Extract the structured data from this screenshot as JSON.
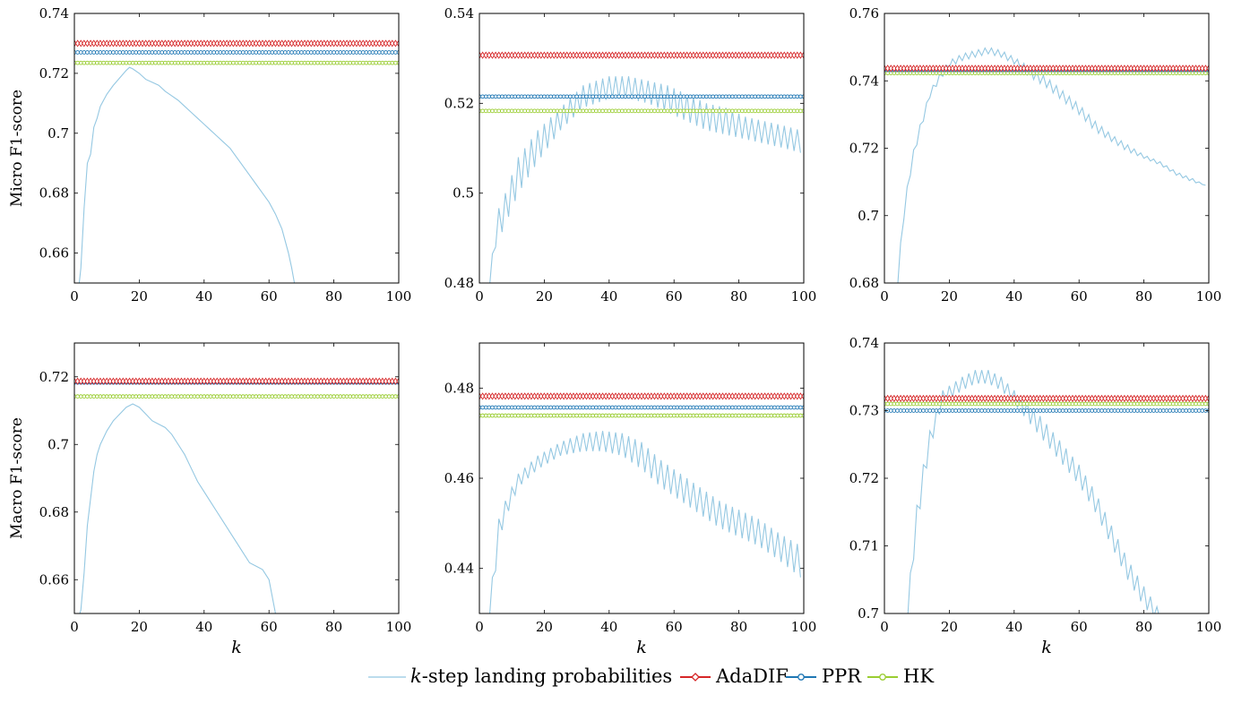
{
  "chart_data": [
    {
      "type": "line",
      "row": 0,
      "col": 0,
      "ylabel": "Micro F1-score",
      "xlabel": "",
      "xlim": [
        0,
        100
      ],
      "ylim": [
        0.65,
        0.74
      ],
      "xticks": [
        "0",
        "20",
        "40",
        "60",
        "80",
        "100"
      ],
      "yticks": [
        "0.66",
        "0.68",
        "0.7",
        "0.72",
        "0.74"
      ],
      "ytickvals": [
        0.66,
        0.68,
        0.7,
        0.72,
        0.74
      ],
      "baselines": {
        "AdaDIF": 0.73,
        "PPR": 0.727,
        "HK": 0.7235
      },
      "kstep_points": [
        [
          1,
          0.645
        ],
        [
          2,
          0.655
        ],
        [
          3,
          0.675
        ],
        [
          4,
          0.69
        ],
        [
          5,
          0.693
        ],
        [
          6,
          0.702
        ],
        [
          7,
          0.705
        ],
        [
          8,
          0.709
        ],
        [
          10,
          0.713
        ],
        [
          12,
          0.716
        ],
        [
          14,
          0.7185
        ],
        [
          16,
          0.721
        ],
        [
          17,
          0.722
        ],
        [
          18,
          0.7215
        ],
        [
          20,
          0.72
        ],
        [
          22,
          0.718
        ],
        [
          24,
          0.717
        ],
        [
          26,
          0.716
        ],
        [
          28,
          0.714
        ],
        [
          30,
          0.7125
        ],
        [
          32,
          0.711
        ],
        [
          34,
          0.709
        ],
        [
          36,
          0.707
        ],
        [
          38,
          0.705
        ],
        [
          40,
          0.703
        ],
        [
          42,
          0.701
        ],
        [
          44,
          0.699
        ],
        [
          46,
          0.697
        ],
        [
          48,
          0.695
        ],
        [
          50,
          0.692
        ],
        [
          52,
          0.689
        ],
        [
          54,
          0.686
        ],
        [
          56,
          0.683
        ],
        [
          58,
          0.68
        ],
        [
          60,
          0.677
        ],
        [
          62,
          0.673
        ],
        [
          64,
          0.668
        ],
        [
          66,
          0.66
        ],
        [
          67,
          0.655
        ],
        [
          68,
          0.649
        ]
      ]
    },
    {
      "type": "line",
      "row": 0,
      "col": 1,
      "ylabel": "",
      "xlabel": "",
      "xlim": [
        0,
        100
      ],
      "ylim": [
        0.48,
        0.54
      ],
      "xticks": [
        "0",
        "20",
        "40",
        "60",
        "80",
        "100"
      ],
      "yticks": [
        "0.48",
        "0.5",
        "0.52",
        "0.54"
      ],
      "ytickvals": [
        0.48,
        0.5,
        0.52,
        0.54
      ],
      "baselines": {
        "AdaDIF": 0.5307,
        "PPR": 0.5215,
        "HK": 0.5183
      },
      "kstep_envelope": {
        "k": [
          3,
          5,
          8,
          12,
          18,
          25,
          32,
          40,
          46,
          52,
          58,
          64,
          70,
          76,
          82,
          88,
          94,
          99
        ],
        "high": [
          0.478,
          0.495,
          0.5,
          0.508,
          0.514,
          0.519,
          0.524,
          0.526,
          0.526,
          0.525,
          0.524,
          0.522,
          0.52,
          0.519,
          0.517,
          0.516,
          0.515,
          0.514
        ],
        "low": [
          0.478,
          0.488,
          0.493,
          0.5,
          0.507,
          0.514,
          0.519,
          0.521,
          0.521,
          0.52,
          0.518,
          0.516,
          0.514,
          0.513,
          0.512,
          0.511,
          0.51,
          0.509
        ]
      }
    },
    {
      "type": "line",
      "row": 0,
      "col": 2,
      "ylabel": "",
      "xlabel": "",
      "xlim": [
        0,
        100
      ],
      "ylim": [
        0.68,
        0.76
      ],
      "xticks": [
        "0",
        "20",
        "40",
        "60",
        "80",
        "100"
      ],
      "yticks": [
        "0.68",
        "0.7",
        "0.72",
        "0.74",
        "0.76"
      ],
      "ytickvals": [
        0.68,
        0.7,
        0.72,
        0.74,
        0.76
      ],
      "baselines": {
        "AdaDIF": 0.7437,
        "PPR": 0.7432,
        "HK": 0.7423
      },
      "kstep_envelope": {
        "k": [
          4,
          5,
          6,
          8,
          10,
          12,
          14,
          17,
          20,
          24,
          28,
          32,
          36,
          40,
          45,
          50,
          55,
          60,
          65,
          70,
          75,
          80,
          85,
          90,
          95,
          99
        ],
        "high": [
          0.678,
          0.692,
          0.702,
          0.715,
          0.724,
          0.73,
          0.737,
          0.742,
          0.746,
          0.748,
          0.749,
          0.75,
          0.749,
          0.747,
          0.744,
          0.741,
          0.737,
          0.733,
          0.728,
          0.724,
          0.721,
          0.718,
          0.716,
          0.713,
          0.711,
          0.709
        ],
        "low": [
          0.678,
          0.69,
          0.699,
          0.712,
          0.721,
          0.728,
          0.735,
          0.74,
          0.744,
          0.746,
          0.747,
          0.748,
          0.747,
          0.745,
          0.741,
          0.738,
          0.734,
          0.73,
          0.725,
          0.722,
          0.719,
          0.717,
          0.715,
          0.712,
          0.71,
          0.709
        ]
      }
    },
    {
      "type": "line",
      "row": 1,
      "col": 0,
      "ylabel": "Macro F1-score",
      "xlabel": "k",
      "xlim": [
        0,
        100
      ],
      "ylim": [
        0.65,
        0.73
      ],
      "xticks": [
        "0",
        "20",
        "40",
        "60",
        "80",
        "100"
      ],
      "yticks": [
        "0.66",
        "0.68",
        "0.7",
        "0.72"
      ],
      "ytickvals": [
        0.66,
        0.68,
        0.7,
        0.72
      ],
      "baselines": {
        "AdaDIF": 0.7187,
        "PPR": 0.7183,
        "HK": 0.7142
      },
      "kstep_points": [
        [
          1,
          0.648
        ],
        [
          2,
          0.651
        ],
        [
          3,
          0.662
        ],
        [
          4,
          0.676
        ],
        [
          5,
          0.684
        ],
        [
          6,
          0.692
        ],
        [
          7,
          0.697
        ],
        [
          8,
          0.7
        ],
        [
          10,
          0.704
        ],
        [
          12,
          0.707
        ],
        [
          14,
          0.709
        ],
        [
          16,
          0.711
        ],
        [
          18,
          0.712
        ],
        [
          19,
          0.7115
        ],
        [
          20,
          0.711
        ],
        [
          22,
          0.709
        ],
        [
          24,
          0.707
        ],
        [
          26,
          0.706
        ],
        [
          28,
          0.705
        ],
        [
          30,
          0.703
        ],
        [
          32,
          0.7
        ],
        [
          34,
          0.697
        ],
        [
          36,
          0.693
        ],
        [
          38,
          0.689
        ],
        [
          40,
          0.686
        ],
        [
          42,
          0.683
        ],
        [
          44,
          0.68
        ],
        [
          46,
          0.677
        ],
        [
          48,
          0.674
        ],
        [
          50,
          0.671
        ],
        [
          52,
          0.668
        ],
        [
          54,
          0.665
        ],
        [
          56,
          0.664
        ],
        [
          58,
          0.663
        ],
        [
          60,
          0.66
        ],
        [
          62,
          0.65
        ],
        [
          63,
          0.649
        ]
      ]
    },
    {
      "type": "line",
      "row": 1,
      "col": 1,
      "ylabel": "",
      "xlabel": "k",
      "xlim": [
        0,
        100
      ],
      "ylim": [
        0.43,
        0.49
      ],
      "xticks": [
        "0",
        "20",
        "40",
        "60",
        "80",
        "100"
      ],
      "yticks": [
        "0.44",
        "0.46",
        "0.48"
      ],
      "ytickvals": [
        0.44,
        0.46,
        0.48
      ],
      "baselines": {
        "AdaDIF": 0.4782,
        "PPR": 0.4757,
        "HK": 0.4739
      },
      "kstep_envelope": {
        "k": [
          3,
          4,
          6,
          8,
          12,
          18,
          25,
          32,
          38,
          44,
          50,
          56,
          62,
          68,
          74,
          80,
          86,
          92,
          99
        ],
        "high": [
          0.428,
          0.438,
          0.451,
          0.455,
          0.461,
          0.465,
          0.468,
          0.47,
          0.4705,
          0.47,
          0.468,
          0.464,
          0.461,
          0.458,
          0.455,
          0.453,
          0.451,
          0.448,
          0.445
        ],
        "low": [
          0.428,
          0.433,
          0.446,
          0.451,
          0.458,
          0.462,
          0.465,
          0.466,
          0.466,
          0.465,
          0.462,
          0.458,
          0.455,
          0.452,
          0.449,
          0.447,
          0.445,
          0.442,
          0.438
        ]
      }
    },
    {
      "type": "line",
      "row": 1,
      "col": 2,
      "ylabel": "",
      "xlabel": "k",
      "xlim": [
        0,
        100
      ],
      "ylim": [
        0.7,
        0.74
      ],
      "xticks": [
        "0",
        "20",
        "40",
        "60",
        "80",
        "100"
      ],
      "yticks": [
        "0.7",
        "0.71",
        "0.72",
        "0.73",
        "0.74"
      ],
      "ytickvals": [
        0.7,
        0.71,
        0.72,
        0.73,
        0.74
      ],
      "baselines": {
        "AdaDIF": 0.7318,
        "PPR": 0.73,
        "HK": 0.731
      },
      "kstep_envelope": {
        "k": [
          7,
          8,
          10,
          12,
          14,
          16,
          18,
          21,
          24,
          28,
          32,
          36,
          40,
          45,
          50,
          55,
          60,
          65,
          70,
          75,
          80,
          84,
          87
        ],
        "high": [
          0.698,
          0.706,
          0.716,
          0.722,
          0.727,
          0.73,
          0.733,
          0.734,
          0.735,
          0.736,
          0.736,
          0.735,
          0.733,
          0.731,
          0.728,
          0.725,
          0.722,
          0.718,
          0.713,
          0.708,
          0.704,
          0.701,
          0.699
        ],
        "low": [
          0.698,
          0.704,
          0.712,
          0.719,
          0.724,
          0.728,
          0.731,
          0.732,
          0.733,
          0.734,
          0.734,
          0.733,
          0.731,
          0.728,
          0.725,
          0.722,
          0.719,
          0.715,
          0.71,
          0.705,
          0.701,
          0.699,
          0.699
        ]
      }
    }
  ],
  "legend": {
    "items": [
      {
        "label_italic": "k",
        "label": "-step landing probabilities",
        "color": "#95c8e2",
        "marker": "none"
      },
      {
        "label": "AdaDIF",
        "color": "#d62728",
        "marker": "diamond"
      },
      {
        "label": "PPR",
        "color": "#1f77b4",
        "marker": "circle"
      },
      {
        "label": "HK",
        "color": "#9acd32",
        "marker": "circle"
      }
    ]
  }
}
